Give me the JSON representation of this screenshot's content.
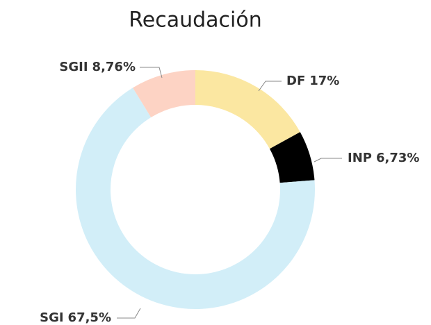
{
  "chart_data": {
    "type": "donut",
    "title": "Recaudación",
    "categories": [
      "DF",
      "INP",
      "SGI",
      "SGII"
    ],
    "values": [
      17,
      6.73,
      67.5,
      8.76
    ],
    "value_labels": [
      "17%",
      "6,73%",
      "67,5%",
      "8,76%"
    ],
    "colors": [
      "#fbe7a1",
      "#000000",
      "#d2eef8",
      "#fdd3c4"
    ]
  }
}
